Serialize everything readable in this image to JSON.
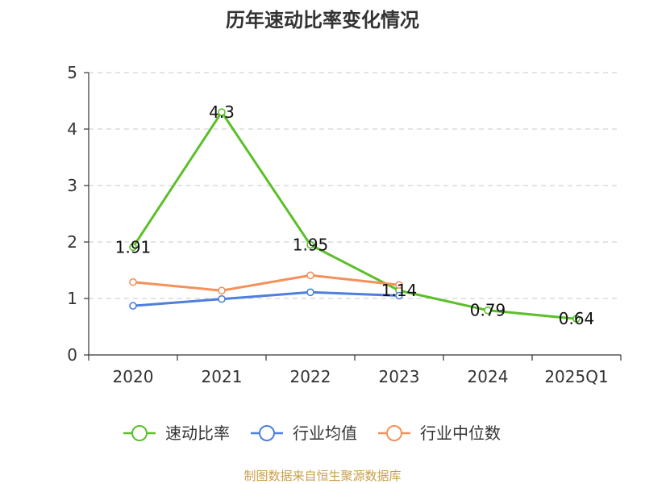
{
  "chart_data": {
    "type": "line",
    "title": "历年速动比率变化情况",
    "categories": [
      "2020",
      "2021",
      "2022",
      "2023",
      "2024",
      "2025Q1"
    ],
    "ylim": [
      0,
      5
    ],
    "yticks": [
      0,
      1,
      2,
      3,
      4,
      5
    ],
    "grid": true,
    "legend_position": "bottom",
    "series": [
      {
        "name": "速动比率",
        "color": "#5cbf2a",
        "values": [
          1.91,
          4.3,
          1.95,
          1.14,
          0.79,
          0.64
        ],
        "labels": [
          "1.91",
          "4.3",
          "1.95",
          "1.14",
          "0.79",
          "0.64"
        ]
      },
      {
        "name": "行业均值",
        "color": "#4e7fdc",
        "values": [
          0.87,
          0.99,
          1.11,
          1.05,
          null,
          null
        ]
      },
      {
        "name": "行业中位数",
        "color": "#f5905b",
        "values": [
          1.29,
          1.14,
          1.41,
          1.24,
          null,
          null
        ]
      }
    ]
  },
  "footer": {
    "source": "制图数据来自恒生聚源数据库"
  }
}
